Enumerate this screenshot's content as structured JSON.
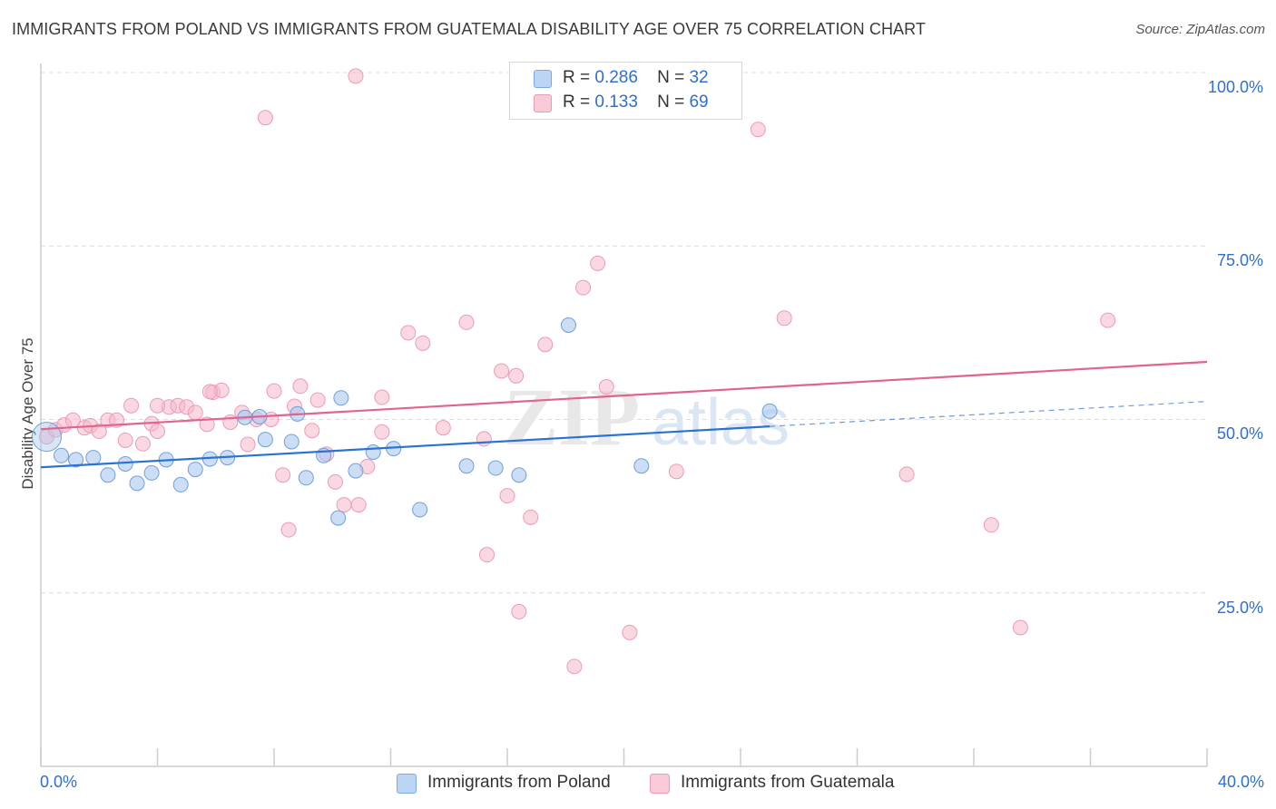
{
  "header": {
    "title": "IMMIGRANTS FROM POLAND VS IMMIGRANTS FROM GUATEMALA DISABILITY AGE OVER 75 CORRELATION CHART",
    "source": "Source: ZipAtlas.com"
  },
  "legend": {
    "poland": {
      "r_label": "R =",
      "r_value": "0.286",
      "n_label": "N =",
      "n_value": "32"
    },
    "guatemala": {
      "r_label": "R =",
      "r_value": "0.133",
      "n_label": "N =",
      "n_value": "69"
    }
  },
  "chart_data": {
    "type": "scatter",
    "title": "IMMIGRANTS FROM POLAND VS IMMIGRANTS FROM GUATEMALA DISABILITY AGE OVER 75 CORRELATION CHART",
    "xlabel": "",
    "ylabel": "Disability Age Over 75",
    "xlim": [
      0,
      40
    ],
    "ylim": [
      0,
      102
    ],
    "x_tick_labels": [
      "0.0%",
      "40.0%"
    ],
    "y_ticks": [
      25,
      50,
      75,
      100
    ],
    "y_tick_labels": [
      "25.0%",
      "50.0%",
      "75.0%",
      "100.0%"
    ],
    "grid": true,
    "legend_position": "top-center",
    "watermark": "ZIPatlas",
    "colors": {
      "poland": "#a8c8f0",
      "poland_line": "#2a72d4",
      "guatemala": "#f5b8cb",
      "guatemala_line": "#e0648f",
      "tick_text": "#2f6fce"
    },
    "series": [
      {
        "name": "Immigrants from Poland",
        "x": [
          0.2,
          0.7,
          1.2,
          1.8,
          2.3,
          2.9,
          3.3,
          3.8,
          4.3,
          4.8,
          5.3,
          5.8,
          6.4,
          7.0,
          7.5,
          7.7,
          8.6,
          9.1,
          8.8,
          9.7,
          10.2,
          10.3,
          10.8,
          11.4,
          12.1,
          13.0,
          14.6,
          15.6,
          16.4,
          18.1,
          20.6,
          25.0
        ],
        "y": [
          47.5,
          44.8,
          44.2,
          44.5,
          42.0,
          43.6,
          40.8,
          42.3,
          44.2,
          40.6,
          42.8,
          44.3,
          44.5,
          50.3,
          50.4,
          47.1,
          46.8,
          41.6,
          50.8,
          44.8,
          35.8,
          53.1,
          42.6,
          45.3,
          45.8,
          37.0,
          43.3,
          43.0,
          42.0,
          63.6,
          43.3,
          51.2
        ]
      },
      {
        "name": "Immigrants from Guatemala",
        "x": [
          0.2,
          0.5,
          0.8,
          1.1,
          1.5,
          1.7,
          2.0,
          2.3,
          2.6,
          2.9,
          3.1,
          3.5,
          3.8,
          4.0,
          4.4,
          4.7,
          5.0,
          5.3,
          5.7,
          5.9,
          6.2,
          6.5,
          6.9,
          7.1,
          7.4,
          7.7,
          8.0,
          8.5,
          8.7,
          8.9,
          9.3,
          9.5,
          9.8,
          10.1,
          10.4,
          10.9,
          11.2,
          11.7,
          12.6,
          13.1,
          13.8,
          14.6,
          15.2,
          15.3,
          15.8,
          16.0,
          16.3,
          16.4,
          16.8,
          17.3,
          18.3,
          18.6,
          19.1,
          19.4,
          20.2,
          21.4,
          21.8,
          24.6,
          25.5,
          29.7,
          32.6,
          33.6,
          36.6,
          11.7,
          7.9,
          5.8,
          4.0,
          8.3,
          10.8
        ],
        "y": [
          47.5,
          48.5,
          49.2,
          49.9,
          48.8,
          49.1,
          48.3,
          49.9,
          49.9,
          47.0,
          52.0,
          46.5,
          49.4,
          48.3,
          51.8,
          52.0,
          51.8,
          51.0,
          49.3,
          53.9,
          54.2,
          49.6,
          51.0,
          46.4,
          50.0,
          93.5,
          54.1,
          34.1,
          51.9,
          54.8,
          48.4,
          52.8,
          45.0,
          41.0,
          37.7,
          37.7,
          43.2,
          48.2,
          62.5,
          61.0,
          48.8,
          64.0,
          47.2,
          30.5,
          57.0,
          39.0,
          56.3,
          22.3,
          35.9,
          60.8,
          14.4,
          69.0,
          72.5,
          54.7,
          19.3,
          100.0,
          42.5,
          91.8,
          64.6,
          42.1,
          34.8,
          20.0,
          64.3,
          53.2,
          50.0,
          54.0,
          52.0,
          42.0,
          99.5
        ]
      }
    ],
    "trendlines": [
      {
        "name": "Immigrants from Poland",
        "x": [
          0,
          25
        ],
        "y": [
          43.1,
          49.0
        ],
        "dashed_extension": {
          "x": [
            25,
            40
          ],
          "y": [
            49.0,
            52.6
          ]
        }
      },
      {
        "name": "Immigrants from Guatemala",
        "x": [
          0,
          40
        ],
        "y": [
          48.6,
          58.3
        ]
      }
    ]
  }
}
